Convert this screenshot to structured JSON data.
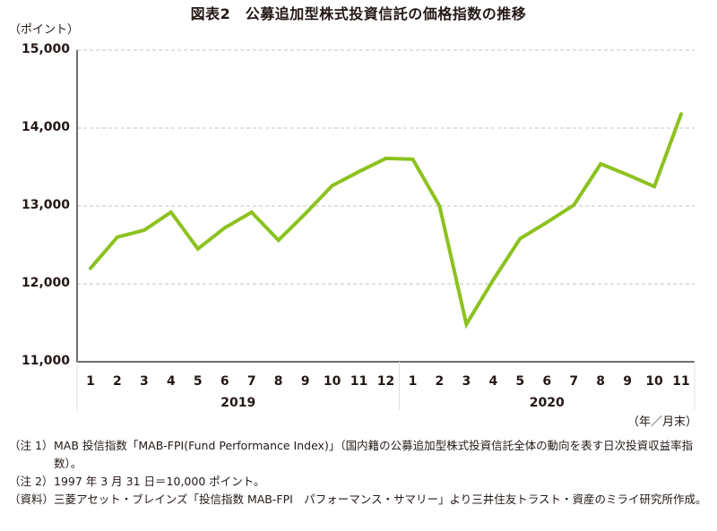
{
  "chart_data": {
    "type": "line",
    "title": "図表2　公募追加型株式投資信託の価格指数の推移",
    "ylabel": "（ポイント）",
    "xlabel": "（年／月末）",
    "ylim": [
      11000,
      15000
    ],
    "yticks": [
      15000,
      14000,
      13000,
      12000,
      11000
    ],
    "ytick_labels": [
      "15,000",
      "14,000",
      "13,000",
      "12,000",
      "11,000"
    ],
    "grid": true,
    "legend": null,
    "line_color": "#8cc21f",
    "x_groups": [
      {
        "year": "2019",
        "months": [
          "1",
          "2",
          "3",
          "4",
          "5",
          "6",
          "7",
          "8",
          "9",
          "10",
          "11",
          "12"
        ]
      },
      {
        "year": "2020",
        "months": [
          "1",
          "2",
          "3",
          "4",
          "5",
          "6",
          "7",
          "8",
          "9",
          "10",
          "11"
        ]
      }
    ],
    "x": [
      "2019/1",
      "2019/2",
      "2019/3",
      "2019/4",
      "2019/5",
      "2019/6",
      "2019/7",
      "2019/8",
      "2019/9",
      "2019/10",
      "2019/11",
      "2019/12",
      "2020/1",
      "2020/2",
      "2020/3",
      "2020/4",
      "2020/5",
      "2020/6",
      "2020/7",
      "2020/8",
      "2020/9",
      "2020/10",
      "2020/11"
    ],
    "series": [
      {
        "name": "MAB-FPI",
        "values": [
          12200,
          12600,
          12690,
          12920,
          12450,
          12720,
          12920,
          12560,
          12900,
          13260,
          13440,
          13610,
          13600,
          13000,
          11480,
          12050,
          12580,
          12790,
          13010,
          13540,
          13400,
          13250,
          14180
        ]
      }
    ]
  },
  "notes": [
    {
      "key": "（注 1）",
      "text": "MAB 投信指数「MAB-FPI(Fund Performance Index)」（国内籍の公募追加型株式投資信託全体の動向を表す日次投資収益率指数）。"
    },
    {
      "key": "（注 2）",
      "text": "1997 年 3 月 31 日＝10,000 ポイント。"
    },
    {
      "key": "（資料）",
      "text": "三菱アセット・ブレインズ「投信指数 MAB-FPI　パフォーマンス・サマリー」より三井住友トラスト・資産のミライ研究所作成。"
    }
  ]
}
